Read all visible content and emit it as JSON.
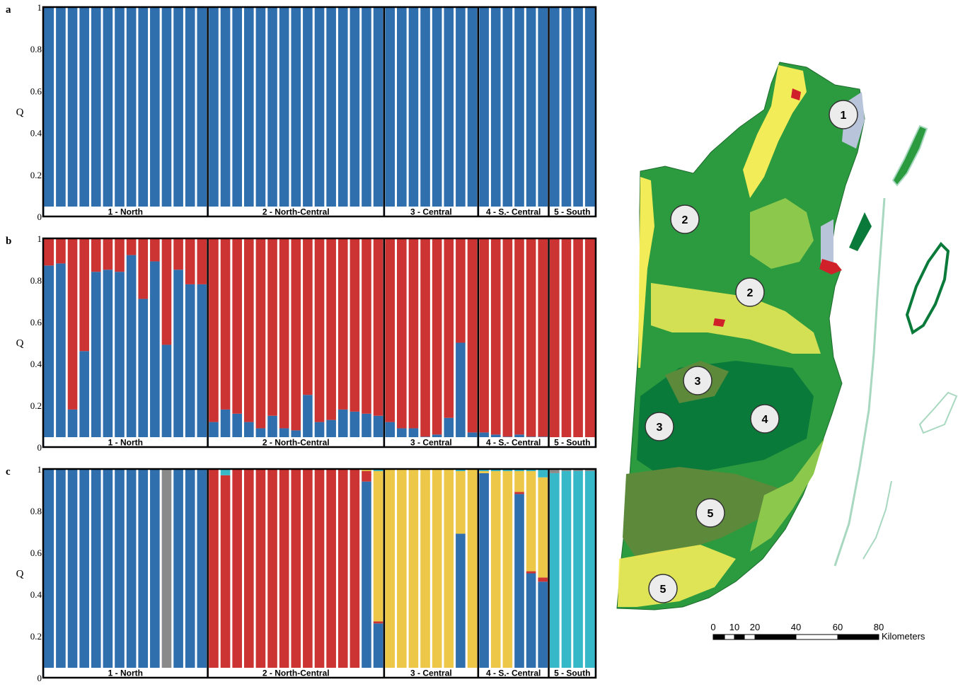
{
  "chart_data": [
    {
      "type": "bar",
      "stacked": true,
      "panel_label": "a",
      "ylabel": "Q",
      "ylim": [
        0,
        1
      ],
      "yticks": [
        "0",
        "0.2",
        "0.4",
        "0.6",
        "0.8",
        "1"
      ],
      "groups": [
        {
          "label": "1 - North",
          "n": 14
        },
        {
          "label": "2 - North-Central",
          "n": 15
        },
        {
          "label": "3 - Central",
          "n": 8
        },
        {
          "label": "4 - S.- Central",
          "n": 6
        },
        {
          "label": "5 - South",
          "n": 4
        }
      ],
      "series": [
        {
          "color": "#2f6fae",
          "values": [
            1,
            1,
            1,
            1,
            1,
            1,
            1,
            1,
            1,
            1,
            1,
            1,
            1,
            1,
            1,
            1,
            1,
            1,
            1,
            1,
            1,
            1,
            1,
            1,
            1,
            1,
            1,
            1,
            1,
            1,
            1,
            1,
            1,
            1,
            1,
            1,
            1,
            1,
            1,
            1,
            1,
            1,
            1,
            1,
            1,
            1,
            1
          ]
        }
      ]
    },
    {
      "type": "bar",
      "stacked": true,
      "panel_label": "b",
      "ylabel": "Q",
      "ylim": [
        0,
        1
      ],
      "yticks": [
        "0",
        "0.2",
        "0.4",
        "0.6",
        "0.8",
        "1"
      ],
      "groups": [
        {
          "label": "1 - North",
          "n": 14
        },
        {
          "label": "2 - North-Central",
          "n": 15
        },
        {
          "label": "3 - Central",
          "n": 8
        },
        {
          "label": "4 - S.- Central",
          "n": 6
        },
        {
          "label": "5 - South",
          "n": 4
        }
      ],
      "series": [
        {
          "color": "#2f6fae",
          "values": [
            0.87,
            0.88,
            0.18,
            0.46,
            0.84,
            0.85,
            0.84,
            0.92,
            0.71,
            0.89,
            0.49,
            0.85,
            0.78,
            0.78,
            0.12,
            0.18,
            0.16,
            0.12,
            0.09,
            0.15,
            0.09,
            0.08,
            0.25,
            0.12,
            0.13,
            0.18,
            0.17,
            0.16,
            0.15,
            0.12,
            0.09,
            0.09,
            0.05,
            0.06,
            0.14,
            0.5,
            0.07,
            0.07,
            0.06,
            0.05,
            0.06,
            0.05,
            0.05,
            0.04,
            0.03,
            0.03,
            0.04
          ]
        },
        {
          "color": "#cc3333",
          "values": [
            0.13,
            0.12,
            0.82,
            0.54,
            0.16,
            0.15,
            0.16,
            0.08,
            0.29,
            0.11,
            0.51,
            0.15,
            0.22,
            0.22,
            0.88,
            0.82,
            0.84,
            0.88,
            0.91,
            0.85,
            0.91,
            0.92,
            0.75,
            0.88,
            0.87,
            0.82,
            0.83,
            0.84,
            0.85,
            0.88,
            0.91,
            0.91,
            0.95,
            0.94,
            0.86,
            0.5,
            0.93,
            0.93,
            0.94,
            0.95,
            0.94,
            0.95,
            0.95,
            0.96,
            0.97,
            0.97,
            0.96
          ]
        }
      ]
    },
    {
      "type": "bar",
      "stacked": true,
      "panel_label": "c",
      "ylabel": "Q",
      "ylim": [
        0,
        1
      ],
      "yticks": [
        "0",
        "0.2",
        "0.4",
        "0.6",
        "0.8",
        "1"
      ],
      "groups": [
        {
          "label": "1 - North",
          "n": 14
        },
        {
          "label": "2 - North-Central",
          "n": 15
        },
        {
          "label": "3 - Central",
          "n": 8
        },
        {
          "label": "4 - S.- Central",
          "n": 6
        },
        {
          "label": "5 - South",
          "n": 4
        }
      ],
      "series": [
        {
          "color": "#2f6fae",
          "values": [
            1,
            1,
            1,
            1,
            1,
            1,
            1,
            1,
            1,
            1,
            0,
            1,
            1,
            1,
            0,
            0,
            0,
            0,
            0,
            0,
            0,
            0,
            0,
            0,
            0,
            0,
            0,
            0.94,
            0.26,
            0,
            0,
            0,
            0,
            0,
            0,
            0.69,
            0,
            0.98,
            0,
            0,
            0.88,
            0.5,
            0.46,
            0,
            0,
            0,
            0
          ]
        },
        {
          "color": "#cc3333",
          "values": [
            0,
            0,
            0,
            0,
            0,
            0,
            0,
            0,
            0,
            0,
            0,
            0,
            0,
            0,
            1,
            0.97,
            1,
            1,
            1,
            1,
            1,
            1,
            1,
            1,
            1,
            1,
            1,
            0.05,
            0.01,
            0,
            0,
            0,
            0,
            0,
            0,
            0,
            0,
            0,
            0.01,
            0.01,
            0.01,
            0.01,
            0.02,
            0.01,
            0.01,
            0.02,
            0.01
          ]
        },
        {
          "color": "#edc848",
          "values": [
            0,
            0,
            0,
            0,
            0,
            0,
            0,
            0,
            0,
            0,
            0,
            0,
            0,
            0,
            0,
            0,
            0,
            0,
            0,
            0,
            0,
            0,
            0,
            0,
            0,
            0,
            0,
            0.01,
            0.72,
            1,
            1,
            1,
            1,
            1,
            1,
            0.3,
            1,
            0.01,
            0.98,
            0.98,
            0.1,
            0.48,
            0.48,
            0.01,
            0,
            0,
            0
          ]
        },
        {
          "color": "#36b8c8",
          "values": [
            0,
            0,
            0,
            0,
            0,
            0,
            0,
            0,
            0,
            0,
            0,
            0,
            0,
            0,
            0,
            0.03,
            0,
            0,
            0,
            0,
            0,
            0,
            0,
            0,
            0,
            0,
            0,
            0,
            0.01,
            0,
            0,
            0,
            0,
            0,
            0,
            0.01,
            0,
            0.01,
            0.01,
            0.01,
            0.01,
            0.01,
            0.04,
            0.96,
            0.98,
            0.97,
            0.98
          ]
        },
        {
          "color": "#8a8a8a",
          "values": [
            0,
            0,
            0,
            0,
            0,
            0,
            0,
            0,
            0,
            0,
            1,
            0,
            0,
            0,
            0,
            0,
            0,
            0,
            0,
            0,
            0,
            0,
            0,
            0,
            0,
            0,
            0,
            0,
            0,
            0,
            0,
            0,
            0,
            0,
            0,
            0,
            0,
            0,
            0,
            0,
            0,
            0,
            0,
            0.02,
            0.01,
            0.01,
            0.01
          ]
        }
      ]
    }
  ],
  "map": {
    "markers": [
      "1",
      "2",
      "2",
      "3",
      "3",
      "4",
      "5",
      "5"
    ],
    "scale_ticks": [
      "0",
      "10",
      "20",
      "40",
      "60",
      "80"
    ],
    "scale_unit": "Kilometers",
    "colors": {
      "forest_dark": "#0a7a3a",
      "forest": "#2c9a3e",
      "forest_light": "#8cc84c",
      "agriculture": "#f2ec58",
      "savanna": "#c8d98a",
      "urban": "#d0202a",
      "wetland": "#b8c4da",
      "pine": "#5c8a3a",
      "lagoon_reef": "#a8d8c0"
    }
  }
}
